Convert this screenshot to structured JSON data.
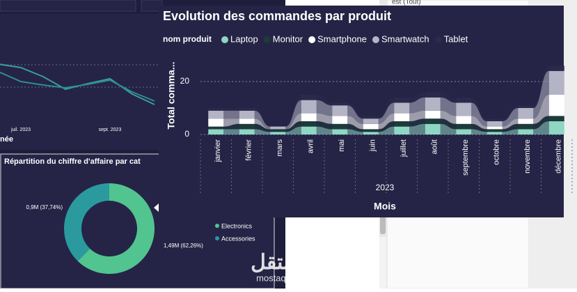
{
  "background_line_chart": {
    "categories": [
      null,
      "juil. 2023",
      null,
      null,
      null,
      "sept. 2023",
      null,
      null
    ],
    "axis_title": "née",
    "ylim": [
      0,
      14
    ],
    "series": [
      {
        "color": "#3a9e9a",
        "values": [
          10.8,
          10.3,
          9.0,
          7.2,
          8.0,
          8.7,
          6.5,
          5.0
        ]
      },
      {
        "color": "#2f8d89",
        "values": [
          9.7,
          8.3,
          7.8,
          7.4,
          7.9,
          8.5,
          6.8,
          5.5
        ]
      }
    ]
  },
  "filter_panel": {
    "text": "est (Tout)"
  },
  "donut_chart": {
    "type": "pie",
    "title": "Répartition du chiffre d'affaire par cat",
    "categories": [
      "Electronics",
      "Accessories"
    ],
    "values": [
      62.26,
      37.74
    ],
    "value_labels": [
      "1,49M (62,26%)",
      "0,9M (37,74%)"
    ],
    "colors": [
      "#52c48f",
      "#2a9a9f"
    ]
  },
  "chart_data": {
    "type": "ribbon",
    "title": "Evolution des commandes par produit",
    "legend_title": "nom produit",
    "y_label": "Total comma...",
    "x_label": "Mois",
    "x_group": "2023",
    "categories": [
      "janvier",
      "février",
      "mars",
      "avril",
      "mai",
      "juin",
      "juillet",
      "août",
      "septembre",
      "octobre",
      "novembre",
      "décembre"
    ],
    "ylim": [
      0,
      28
    ],
    "yticks": [
      0,
      20
    ],
    "grid": true,
    "series": [
      {
        "name": "Laptop",
        "color": "#8fd6c3",
        "values": [
          2,
          2,
          1,
          3,
          2,
          1,
          3,
          4,
          2,
          1,
          2,
          5
        ]
      },
      {
        "name": "Monitor",
        "color": "#1d3b3a",
        "values": [
          1,
          2,
          1,
          2,
          2,
          1,
          2,
          2,
          2,
          1,
          2,
          2
        ]
      },
      {
        "name": "Smartphone",
        "color": "#ffffff",
        "values": [
          3,
          2,
          0,
          3,
          3,
          2,
          3,
          3,
          3,
          1,
          2,
          8
        ]
      },
      {
        "name": "Smartwatch",
        "color": "#b4b4c6",
        "values": [
          3,
          3,
          1,
          5,
          4,
          2,
          4,
          5,
          5,
          2,
          4,
          9
        ]
      },
      {
        "name": "Tablet",
        "color": "#2b2a4c",
        "values": [
          1,
          1,
          0,
          2,
          1,
          1,
          2,
          2,
          2,
          1,
          1,
          2
        ]
      }
    ]
  },
  "watermark": {
    "arabic": "مستقل",
    "latin": "mostaql.com"
  }
}
